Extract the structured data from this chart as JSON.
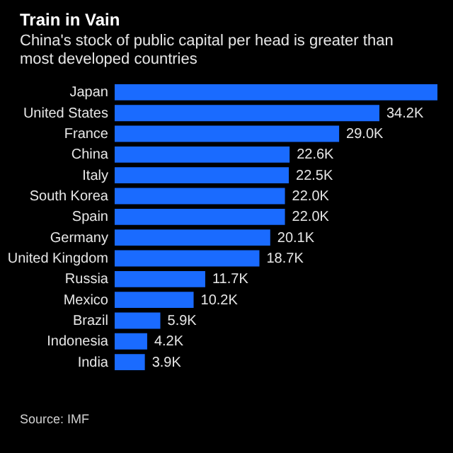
{
  "chart_data": {
    "type": "bar",
    "orientation": "horizontal",
    "title": "Train in Vain",
    "subtitle": "China's stock of public capital per head is greater than most developed countries",
    "categories": [
      "Japan",
      "United States",
      "France",
      "China",
      "Italy",
      "South Korea",
      "Spain",
      "Germany",
      "United Kingdom",
      "Russia",
      "Mexico",
      "Brazil",
      "Indonesia",
      "India"
    ],
    "values": [
      41.7,
      34.2,
      29.0,
      22.6,
      22.5,
      22.0,
      22.0,
      20.1,
      18.7,
      11.7,
      10.2,
      5.9,
      4.2,
      3.9
    ],
    "value_labels": [
      null,
      "34.2K",
      "29.0K",
      "22.6K",
      "22.5K",
      "22.0K",
      "22.0K",
      "20.1K",
      "18.7K",
      "11.7K",
      "10.2K",
      "5.9K",
      "4.2K",
      "3.9K"
    ],
    "color": "#1a6bff",
    "annotations": [
      "Source: IMF"
    ]
  }
}
